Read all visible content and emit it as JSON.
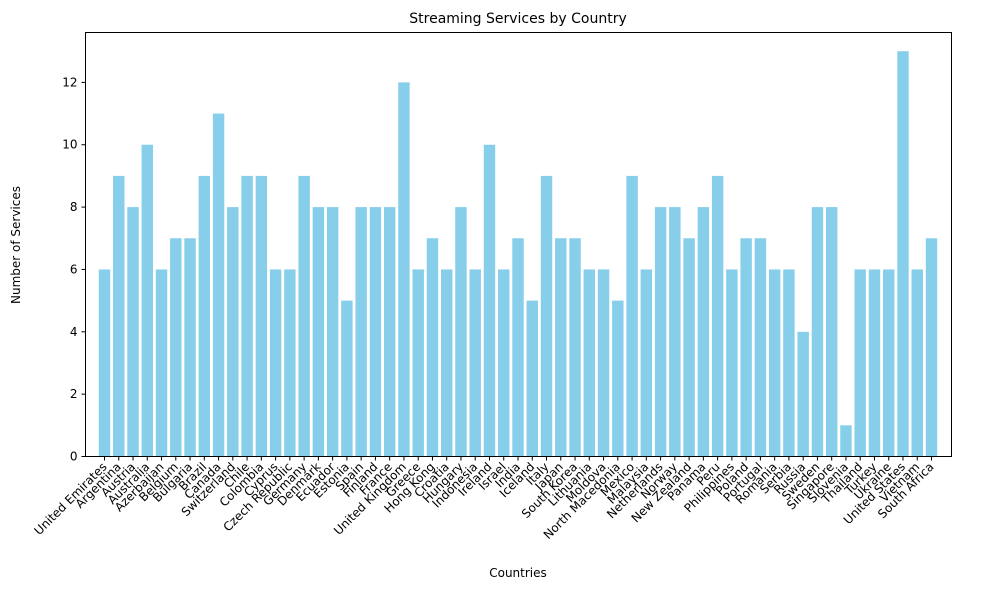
{
  "chart_data": {
    "type": "bar",
    "title": "Streaming Services by Country",
    "xlabel": "Countries",
    "ylabel": "Number of Services",
    "ylim": [
      0,
      13.6
    ],
    "yticks": [
      0,
      2,
      4,
      6,
      8,
      10,
      12
    ],
    "grid": false,
    "bar_color": "#87ceeb",
    "categories": [
      "United Emirates",
      "Argentina",
      "Austria",
      "Australia",
      "Azerbaijan",
      "Belgium",
      "Bulgaria",
      "Brazil",
      "Canada",
      "Switzerland",
      "Chile",
      "Colombia",
      "Cyprus",
      "Czech Republic",
      "Germany",
      "Denmark",
      "Ecuador",
      "Estonia",
      "Spain",
      "Finland",
      "France",
      "United Kingdom",
      "Greece",
      "Hong Kong",
      "Croatia",
      "Hungary",
      "Indonesia",
      "Ireland",
      "Israel",
      "India",
      "Iceland",
      "Italy",
      "Japan",
      "South Korea",
      "Lithuania",
      "Moldova",
      "North Macedonia",
      "Mexico",
      "Malaysia",
      "Netherlands",
      "Norway",
      "New Zealand",
      "Panama",
      "Peru",
      "Philippines",
      "Poland",
      "Portugal",
      "Romania",
      "Serbia",
      "Russia",
      "Sweden",
      "Singapore",
      "Slovenia",
      "Thailand",
      "Turkey",
      "Ukraine",
      "United States",
      "Vietnam",
      "South Africa"
    ],
    "values": [
      6,
      9,
      8,
      10,
      6,
      7,
      7,
      9,
      11,
      8,
      9,
      9,
      6,
      6,
      9,
      8,
      8,
      5,
      8,
      8,
      8,
      12,
      6,
      7,
      6,
      8,
      6,
      10,
      6,
      7,
      5,
      9,
      7,
      7,
      6,
      6,
      5,
      9,
      6,
      8,
      8,
      7,
      8,
      9,
      6,
      7,
      7,
      6,
      6,
      4,
      8,
      8,
      1,
      6,
      6,
      6,
      13,
      6,
      7
    ]
  }
}
